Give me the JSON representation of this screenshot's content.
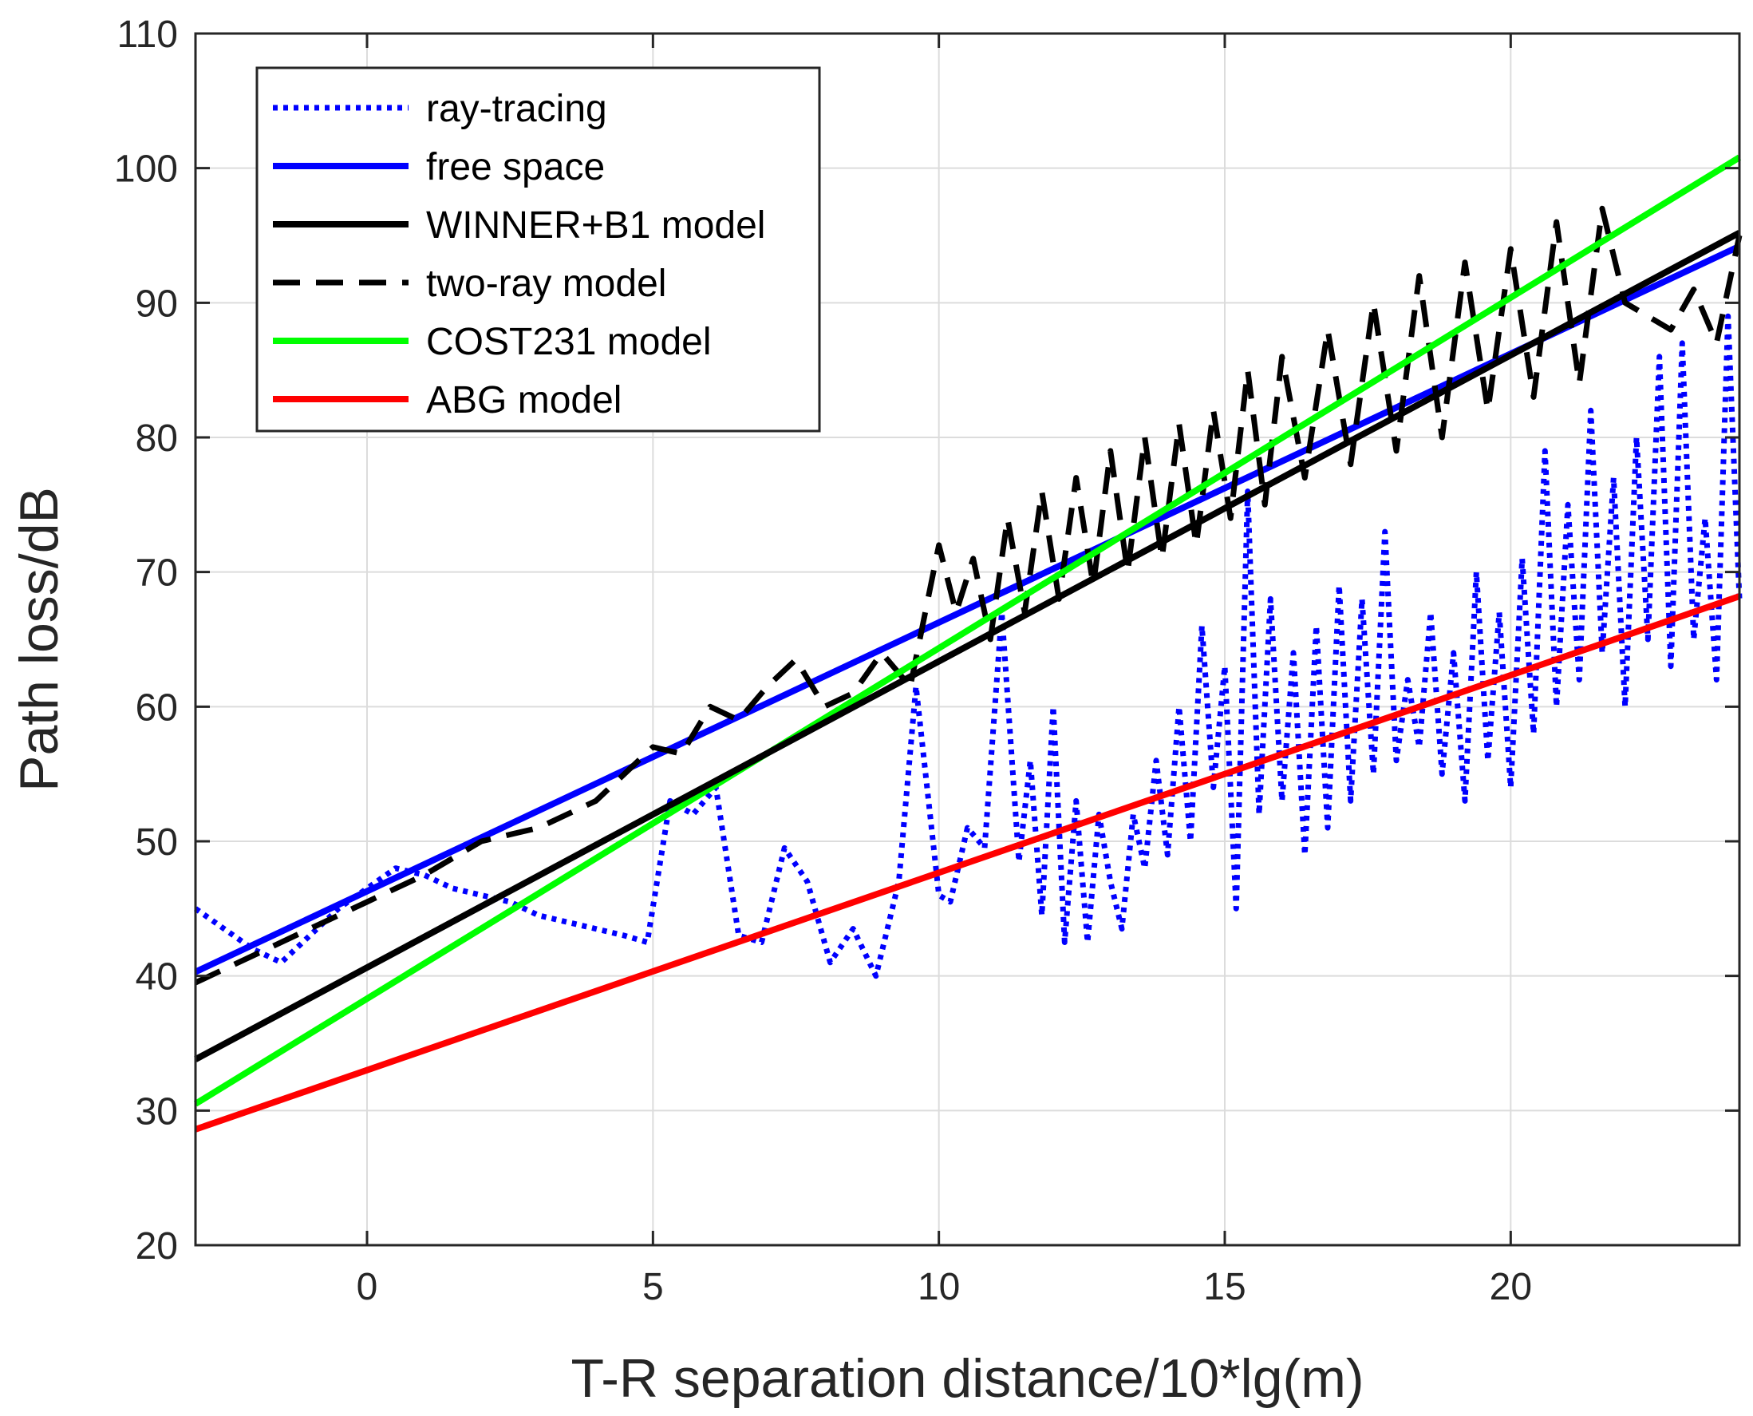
{
  "chart_data": {
    "type": "line",
    "title": "",
    "xlabel": "T-R separation distance/10*lg(m)",
    "ylabel": "Path loss/dB",
    "xlim": [
      -3,
      24
    ],
    "ylim": [
      20,
      110
    ],
    "xticks": [
      0,
      5,
      10,
      15,
      20
    ],
    "yticks": [
      20,
      30,
      40,
      50,
      60,
      70,
      80,
      90,
      100,
      110
    ],
    "grid": true,
    "legend_position": "top-left",
    "series": [
      {
        "name": "ray-tracing",
        "color": "#0000ff",
        "style": "dotted",
        "x": [
          -3,
          -2.5,
          -2,
          -1.5,
          -1,
          -0.5,
          0,
          0.5,
          1,
          1.5,
          2,
          2.5,
          3,
          3.5,
          4,
          4.5,
          4.9,
          5.3,
          5.7,
          6.1,
          6.5,
          6.9,
          7.3,
          7.7,
          8.1,
          8.5,
          8.9,
          9.3,
          9.6,
          10.0,
          10.2,
          10.5,
          10.8,
          11.1,
          11.4,
          11.6,
          11.8,
          12.0,
          12.2,
          12.4,
          12.6,
          12.8,
          13.0,
          13.2,
          13.4,
          13.6,
          13.8,
          14.0,
          14.2,
          14.4,
          14.6,
          14.8,
          15.0,
          15.2,
          15.4,
          15.6,
          15.8,
          16.0,
          16.2,
          16.4,
          16.6,
          16.8,
          17.0,
          17.2,
          17.4,
          17.6,
          17.8,
          18.0,
          18.2,
          18.4,
          18.6,
          18.8,
          19.0,
          19.2,
          19.4,
          19.6,
          19.8,
          20.0,
          20.2,
          20.4,
          20.6,
          20.8,
          21.0,
          21.2,
          21.4,
          21.6,
          21.8,
          22.0,
          22.2,
          22.4,
          22.6,
          22.8,
          23.0,
          23.2,
          23.4,
          23.6,
          23.8,
          24.0
        ],
        "y": [
          45,
          43.5,
          42,
          41,
          43,
          45,
          46.5,
          48,
          47.5,
          46.5,
          46,
          45.5,
          44.5,
          44,
          43.5,
          43,
          42.5,
          53,
          52,
          54,
          43,
          42.5,
          49.5,
          47,
          41,
          43.5,
          40,
          47,
          61.5,
          46,
          45.5,
          51,
          49.5,
          67,
          48.5,
          56,
          44.5,
          60,
          42.5,
          53,
          42.5,
          52,
          47,
          43.5,
          52,
          48,
          56,
          49,
          60,
          50,
          66,
          54,
          63,
          45,
          76,
          52,
          68,
          53,
          64,
          49,
          66,
          51,
          69,
          53,
          68,
          55,
          73,
          56,
          62,
          57,
          67,
          55,
          64,
          53,
          70,
          56,
          67,
          54,
          71,
          58,
          79,
          60,
          75,
          62,
          82,
          64,
          77,
          60,
          80,
          65,
          86,
          63,
          87,
          65,
          74,
          62,
          89,
          68
        ],
        "values_note_hidden": ""
      },
      {
        "name": "free space",
        "color": "#0000ff",
        "style": "solid",
        "x": [
          -3,
          24
        ],
        "y": [
          40.3,
          94.2
        ]
      },
      {
        "name": "WINNER+B1 model",
        "color": "#000000",
        "style": "solid",
        "x": [
          -3,
          24
        ],
        "y": [
          33.8,
          95.2
        ]
      },
      {
        "name": "two-ray model",
        "color": "#000000",
        "style": "dashed",
        "x": [
          -3,
          -2,
          -1,
          0,
          1,
          2,
          3,
          4,
          5,
          5.5,
          6,
          6.5,
          7,
          7.5,
          8,
          8.5,
          9,
          9.5,
          10,
          10.3,
          10.6,
          10.9,
          11.2,
          11.5,
          11.8,
          12.1,
          12.4,
          12.7,
          13.0,
          13.3,
          13.6,
          13.9,
          14.2,
          14.5,
          14.8,
          15.1,
          15.4,
          15.7,
          16.0,
          16.4,
          16.8,
          17.2,
          17.6,
          18.0,
          18.4,
          18.8,
          19.2,
          19.6,
          20.0,
          20.4,
          20.8,
          21.2,
          21.6,
          22.0,
          22.4,
          22.8,
          23.2,
          23.6,
          24.0
        ],
        "y": [
          39.5,
          41.5,
          43.5,
          45.5,
          47.5,
          50,
          51,
          53,
          57,
          56.5,
          60,
          59,
          61.5,
          63.5,
          60,
          61,
          64,
          61.5,
          72,
          67,
          71,
          65,
          74,
          67,
          76,
          68,
          77,
          69,
          79,
          70,
          80,
          71,
          81,
          72,
          82,
          74,
          85,
          75,
          86,
          77,
          88,
          78,
          90,
          79,
          92,
          80,
          93,
          82,
          94,
          83,
          96,
          84,
          97,
          90,
          89,
          88,
          91,
          87,
          95
        ]
      },
      {
        "name": "COST231 model",
        "color": "#00ff00",
        "style": "solid",
        "x": [
          -3,
          24
        ],
        "y": [
          30.5,
          100.8
        ]
      },
      {
        "name": "ABG model",
        "color": "#ff0000",
        "style": "solid",
        "x": [
          -3,
          24
        ],
        "y": [
          28.6,
          68.2
        ]
      }
    ]
  }
}
